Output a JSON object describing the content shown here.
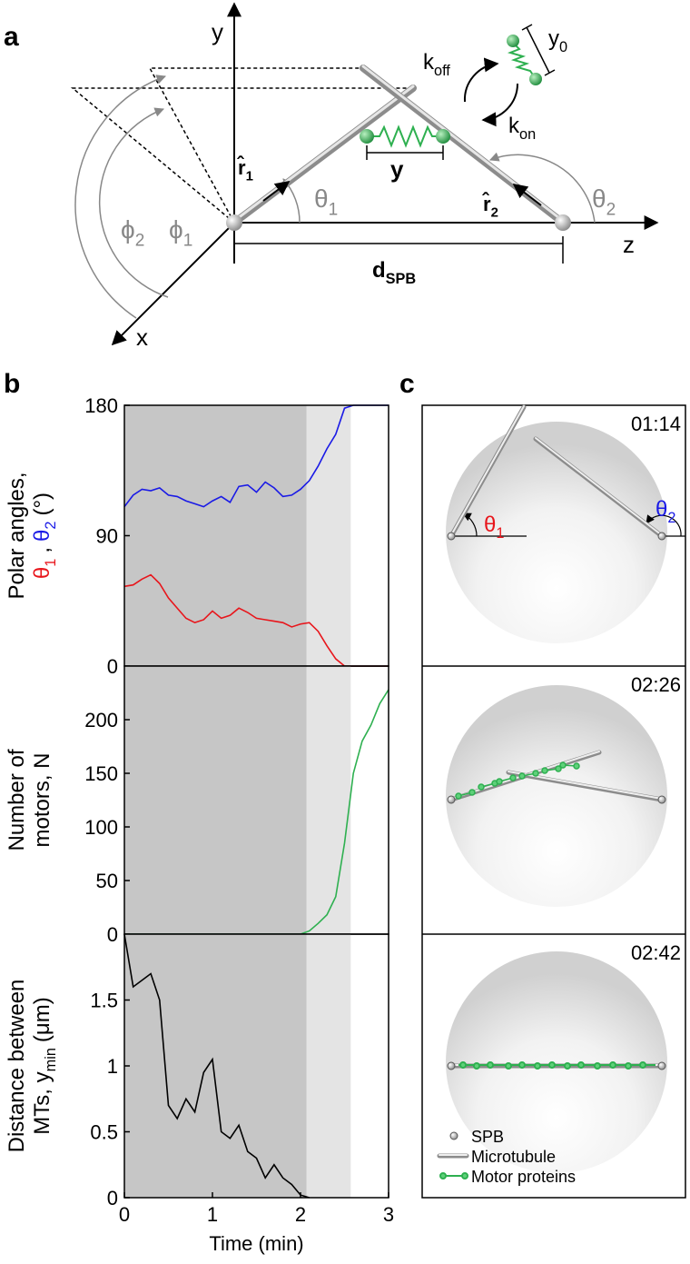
{
  "panels": [
    "a",
    "b",
    "c"
  ],
  "diagram": {
    "y_axis": [
      {
        "text": "y"
      }
    ],
    "z_axis": [
      {
        "text": "z"
      }
    ],
    "x_axis": [
      {
        "text": "x"
      }
    ],
    "k_off": [
      {
        "text": "k"
      },
      {
        "sub": "off"
      }
    ],
    "k_on": [
      {
        "text": "k"
      },
      {
        "sub": "on"
      }
    ],
    "y0": [
      {
        "text": "y"
      },
      {
        "sub": "0"
      }
    ],
    "y": [
      {
        "text": "y"
      }
    ],
    "r1": [
      {
        "text": "r̂"
      },
      {
        "sub": "1"
      }
    ],
    "r2": [
      {
        "text": "r̂"
      },
      {
        "sub": "2"
      }
    ],
    "theta1": [
      {
        "text": "θ"
      },
      {
        "sub": "1"
      }
    ],
    "theta2": [
      {
        "text": "θ"
      },
      {
        "sub": "2"
      }
    ],
    "phi1": [
      {
        "text": "ϕ"
      },
      {
        "sub": "1"
      }
    ],
    "phi2": [
      {
        "text": "ϕ"
      },
      {
        "sub": "2"
      }
    ],
    "d_spb": [
      {
        "text": "d"
      },
      {
        "sub": "SPB"
      }
    ]
  },
  "snapshots": {
    "times": [
      "01:14",
      "02:26",
      "02:42"
    ],
    "theta1": [
      {
        "text": "θ",
        "color": "#e8151b"
      },
      {
        "sub": "1",
        "color": "#e8151b"
      }
    ],
    "theta2": [
      {
        "text": "θ",
        "color": "#1a1ae6"
      },
      {
        "sub": "2",
        "color": "#1a1ae6"
      }
    ],
    "legend": [
      "SPB",
      "Microtubule",
      "Motor proteins"
    ]
  },
  "chart_data": [
    {
      "type": "line",
      "y_label": [
        [
          {
            "text": "Polar angles,"
          }
        ],
        [
          {
            "text": "θ",
            "color": "#e8151b"
          },
          {
            "sub": "1",
            "color": "#e8151b"
          },
          {
            "text": ","
          },
          {
            "text": "θ",
            "color": "#1a1ae6"
          },
          {
            "sub": "2",
            "color": "#1a1ae6"
          },
          {
            "text": "(°)"
          }
        ]
      ],
      "xlim": [
        0,
        3
      ],
      "ylim": [
        0,
        180
      ],
      "yticks": [
        0,
        90,
        180
      ],
      "phases": [
        {
          "start": 0,
          "end": 2.07,
          "color": "#c6c6c6"
        },
        {
          "start": 2.07,
          "end": 2.57,
          "color": "#e4e4e4"
        }
      ],
      "x": [
        0,
        0.1,
        0.2,
        0.3,
        0.4,
        0.5,
        0.6,
        0.7,
        0.8,
        0.9,
        1,
        1.1,
        1.2,
        1.3,
        1.4,
        1.5,
        1.6,
        1.7,
        1.8,
        1.9,
        2,
        2.1,
        2.2,
        2.3,
        2.4,
        2.5,
        2.6,
        2.7,
        2.8,
        2.9,
        3
      ],
      "series": [
        {
          "color": "#1a1ae6",
          "values": [
            110,
            118,
            122,
            121,
            123,
            118,
            117,
            114,
            112,
            110,
            114,
            117,
            113,
            124,
            125,
            120,
            127,
            123,
            117,
            118,
            122,
            128,
            138,
            150,
            160,
            178,
            180,
            180,
            180,
            180,
            180
          ]
        },
        {
          "color": "#e8151b",
          "values": [
            55,
            56,
            60,
            63,
            57,
            47,
            40,
            33,
            30,
            32,
            38,
            33,
            35,
            40,
            37,
            33,
            32,
            31,
            30,
            27,
            29,
            30,
            24,
            14,
            5,
            0,
            0,
            0,
            0,
            0,
            0
          ]
        }
      ]
    },
    {
      "type": "line",
      "y_label": [
        [
          {
            "text": "Number of"
          }
        ],
        [
          {
            "text": "motors, N"
          }
        ]
      ],
      "xlim": [
        0,
        3
      ],
      "ylim": [
        0,
        250
      ],
      "yticks": [
        0,
        50,
        100,
        150,
        200
      ],
      "phases": [
        {
          "start": 0,
          "end": 2.07,
          "color": "#c6c6c6"
        },
        {
          "start": 2.07,
          "end": 2.57,
          "color": "#e4e4e4"
        }
      ],
      "x": [
        0,
        0.1,
        0.2,
        0.3,
        0.4,
        0.5,
        0.6,
        0.7,
        0.8,
        0.9,
        1,
        1.1,
        1.2,
        1.3,
        1.4,
        1.5,
        1.6,
        1.7,
        1.8,
        1.9,
        2,
        2.1,
        2.2,
        2.3,
        2.4,
        2.5,
        2.6,
        2.7,
        2.8,
        2.9,
        3
      ],
      "series": [
        {
          "color": "#2eb050",
          "values": [
            0,
            0,
            0,
            0,
            0,
            0,
            0,
            0,
            0,
            0,
            0,
            0,
            0,
            0,
            0,
            0,
            0,
            0,
            0,
            0,
            0,
            3,
            10,
            18,
            35,
            85,
            150,
            180,
            195,
            215,
            228
          ]
        }
      ]
    },
    {
      "type": "line",
      "y_label": [
        [
          {
            "text": "Distance between"
          }
        ],
        [
          {
            "text": "MTs, y"
          },
          {
            "sub": "min"
          },
          {
            "text": "(μm)"
          }
        ]
      ],
      "x_label": "Time (min)",
      "xlim": [
        0,
        3
      ],
      "xticks": [
        0,
        1,
        2,
        3
      ],
      "ylim": [
        0,
        2
      ],
      "yticks": [
        0,
        0.5,
        1,
        1.5
      ],
      "phases": [
        {
          "start": 0,
          "end": 2.07,
          "color": "#c6c6c6"
        },
        {
          "start": 2.07,
          "end": 2.57,
          "color": "#e4e4e4"
        }
      ],
      "x": [
        0,
        0.1,
        0.2,
        0.3,
        0.4,
        0.5,
        0.6,
        0.7,
        0.8,
        0.9,
        1,
        1.1,
        1.2,
        1.3,
        1.4,
        1.5,
        1.6,
        1.7,
        1.8,
        1.9,
        2,
        2.1,
        2.2,
        2.3,
        2.4,
        2.5,
        2.6,
        2.7,
        2.8,
        2.9,
        3
      ],
      "series": [
        {
          "color": "#000000",
          "values": [
            2,
            1.6,
            1.65,
            1.7,
            1.5,
            0.7,
            0.6,
            0.75,
            0.65,
            0.95,
            1.05,
            0.5,
            0.45,
            0.55,
            0.35,
            0.3,
            0.15,
            0.25,
            0.15,
            0.1,
            0.02,
            0,
            null,
            null,
            null,
            null,
            null,
            null,
            null,
            null,
            null
          ]
        }
      ]
    }
  ]
}
